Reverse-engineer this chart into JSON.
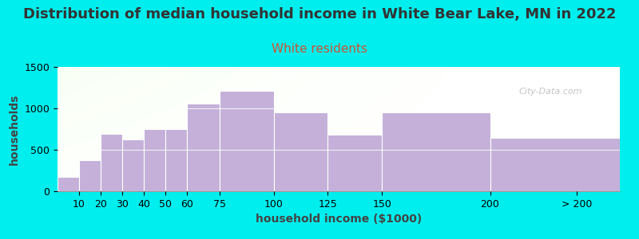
{
  "title": "Distribution of median household income in White Bear Lake, MN in 2022",
  "subtitle": "White residents",
  "xlabel": "household income ($1000)",
  "ylabel": "households",
  "background_color": "#00EEEE",
  "bar_color": "#c4b0d8",
  "bar_edge_color": "#ffffff",
  "categories": [
    "10",
    "20",
    "30",
    "40",
    "50",
    "60",
    "75",
    "100",
    "125",
    "150",
    "200",
    "> 200"
  ],
  "left_edges": [
    0,
    10,
    20,
    30,
    40,
    50,
    60,
    75,
    100,
    125,
    150,
    200
  ],
  "right_edges": [
    10,
    20,
    30,
    40,
    50,
    60,
    75,
    100,
    125,
    150,
    200,
    260
  ],
  "values": [
    175,
    375,
    690,
    625,
    750,
    750,
    1060,
    1210,
    950,
    680,
    950,
    640
  ],
  "ylim": [
    0,
    1500
  ],
  "yticks": [
    0,
    500,
    1000,
    1500
  ],
  "xlim": [
    0,
    260
  ],
  "title_fontsize": 13,
  "subtitle_fontsize": 11,
  "subtitle_color": "#cc5533",
  "title_color": "#333333",
  "axis_label_fontsize": 10,
  "tick_fontsize": 9,
  "watermark": "City-Data.com",
  "xtick_positions": [
    10,
    20,
    30,
    40,
    50,
    60,
    75,
    100,
    125,
    150,
    200
  ],
  "xtick_labels": [
    "10",
    "20",
    "30",
    "40",
    "50",
    "60",
    "75",
    "100",
    "125",
    "150",
    "200"
  ]
}
